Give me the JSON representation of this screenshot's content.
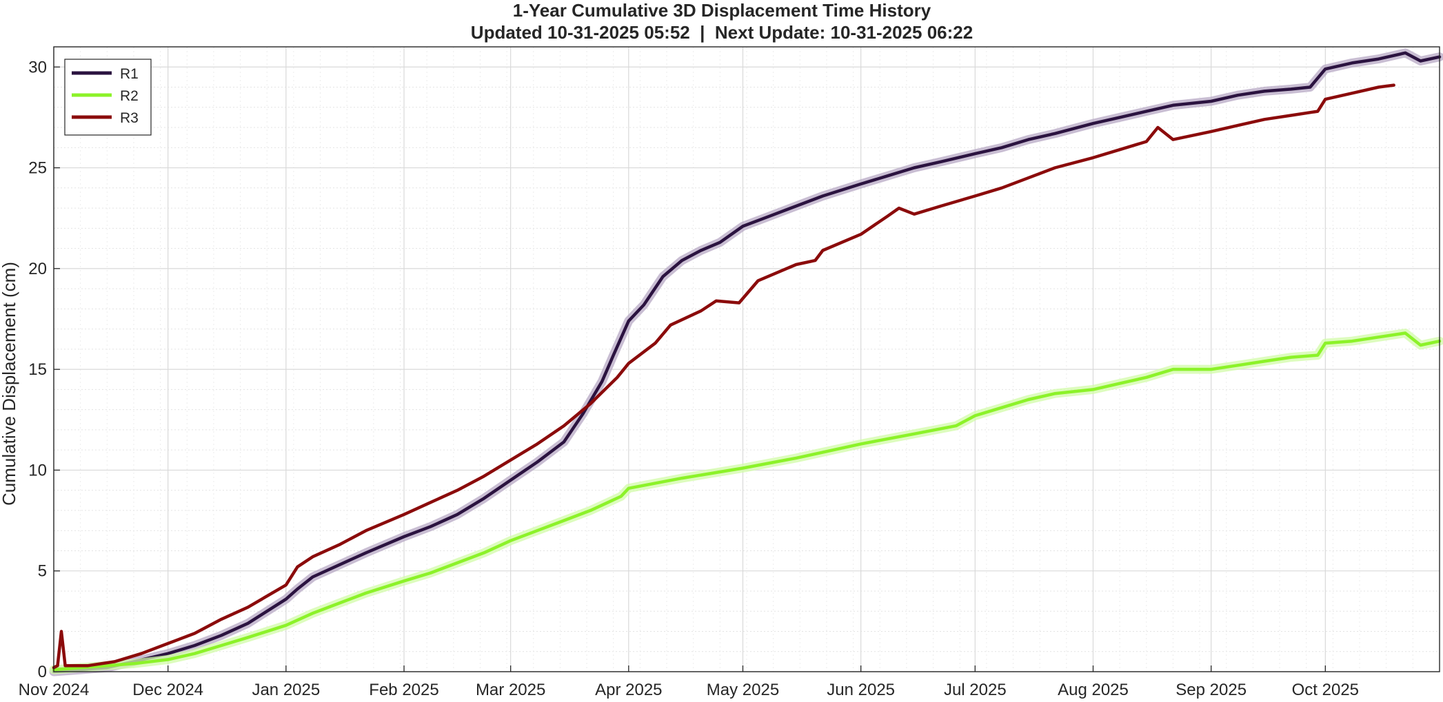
{
  "chart_data": {
    "type": "line",
    "title": "1-Year Cumulative 3D Displacement Time History",
    "subtitle": "Updated 10-31-2025 05:52  |  Next Update: 10-31-2025 06:22",
    "xlabel": "",
    "ylabel": "Cumulative Displacement (cm)",
    "x_axis_type": "date",
    "xlim": [
      "2024-11-01",
      "2025-10-31"
    ],
    "ylim": [
      0,
      31
    ],
    "x_ticks": [
      {
        "date": "2024-11-01",
        "label": "Nov 2024"
      },
      {
        "date": "2024-12-01",
        "label": "Dec 2024"
      },
      {
        "date": "2025-01-01",
        "label": "Jan 2025"
      },
      {
        "date": "2025-02-01",
        "label": "Feb 2025"
      },
      {
        "date": "2025-03-01",
        "label": "Mar 2025"
      },
      {
        "date": "2025-04-01",
        "label": "Apr 2025"
      },
      {
        "date": "2025-05-01",
        "label": "May 2025"
      },
      {
        "date": "2025-06-01",
        "label": "Jun 2025"
      },
      {
        "date": "2025-07-01",
        "label": "Jul 2025"
      },
      {
        "date": "2025-08-01",
        "label": "Aug 2025"
      },
      {
        "date": "2025-09-01",
        "label": "Sep 2025"
      },
      {
        "date": "2025-10-01",
        "label": "Oct 2025"
      }
    ],
    "y_ticks": [
      0,
      5,
      10,
      15,
      20,
      25,
      30
    ],
    "y_minor_step": 1,
    "grid": true,
    "legend_position": "top-left",
    "series": [
      {
        "name": "R1",
        "color": "#2b1340",
        "band_color": "#b7a8c4",
        "points": [
          [
            "2024-11-01",
            0.0
          ],
          [
            "2024-11-08",
            0.1
          ],
          [
            "2024-11-15",
            0.2
          ],
          [
            "2024-11-22",
            0.5
          ],
          [
            "2024-12-01",
            0.9
          ],
          [
            "2024-12-08",
            1.3
          ],
          [
            "2024-12-15",
            1.8
          ],
          [
            "2024-12-22",
            2.4
          ],
          [
            "2025-01-01",
            3.6
          ],
          [
            "2025-01-04",
            4.1
          ],
          [
            "2025-01-08",
            4.7
          ],
          [
            "2025-01-15",
            5.3
          ],
          [
            "2025-01-22",
            5.9
          ],
          [
            "2025-02-01",
            6.7
          ],
          [
            "2025-02-08",
            7.2
          ],
          [
            "2025-02-15",
            7.8
          ],
          [
            "2025-02-22",
            8.6
          ],
          [
            "2025-03-01",
            9.5
          ],
          [
            "2025-03-08",
            10.4
          ],
          [
            "2025-03-15",
            11.4
          ],
          [
            "2025-03-20",
            12.8
          ],
          [
            "2025-03-25",
            14.4
          ],
          [
            "2025-03-28",
            15.7
          ],
          [
            "2025-04-01",
            17.4
          ],
          [
            "2025-04-05",
            18.2
          ],
          [
            "2025-04-10",
            19.6
          ],
          [
            "2025-04-15",
            20.4
          ],
          [
            "2025-04-20",
            20.9
          ],
          [
            "2025-04-25",
            21.3
          ],
          [
            "2025-05-01",
            22.1
          ],
          [
            "2025-05-08",
            22.6
          ],
          [
            "2025-05-15",
            23.1
          ],
          [
            "2025-05-22",
            23.6
          ],
          [
            "2025-06-01",
            24.2
          ],
          [
            "2025-06-08",
            24.6
          ],
          [
            "2025-06-15",
            25.0
          ],
          [
            "2025-06-22",
            25.3
          ],
          [
            "2025-07-01",
            25.7
          ],
          [
            "2025-07-08",
            26.0
          ],
          [
            "2025-07-15",
            26.4
          ],
          [
            "2025-07-22",
            26.7
          ],
          [
            "2025-08-01",
            27.2
          ],
          [
            "2025-08-08",
            27.5
          ],
          [
            "2025-08-15",
            27.8
          ],
          [
            "2025-08-22",
            28.1
          ],
          [
            "2025-09-01",
            28.3
          ],
          [
            "2025-09-08",
            28.6
          ],
          [
            "2025-09-15",
            28.8
          ],
          [
            "2025-09-22",
            28.9
          ],
          [
            "2025-09-27",
            29.0
          ],
          [
            "2025-10-01",
            29.9
          ],
          [
            "2025-10-08",
            30.2
          ],
          [
            "2025-10-15",
            30.4
          ],
          [
            "2025-10-22",
            30.7
          ],
          [
            "2025-10-26",
            30.3
          ],
          [
            "2025-10-31",
            30.5
          ]
        ]
      },
      {
        "name": "R2",
        "color": "#8cf229",
        "band_color": "#d2fba8",
        "points": [
          [
            "2024-11-01",
            0.1
          ],
          [
            "2024-11-08",
            0.2
          ],
          [
            "2024-11-15",
            0.3
          ],
          [
            "2024-11-22",
            0.4
          ],
          [
            "2024-12-01",
            0.6
          ],
          [
            "2024-12-08",
            0.9
          ],
          [
            "2024-12-15",
            1.3
          ],
          [
            "2024-12-22",
            1.7
          ],
          [
            "2025-01-01",
            2.3
          ],
          [
            "2025-01-08",
            2.9
          ],
          [
            "2025-01-15",
            3.4
          ],
          [
            "2025-01-22",
            3.9
          ],
          [
            "2025-02-01",
            4.5
          ],
          [
            "2025-02-08",
            4.9
          ],
          [
            "2025-02-15",
            5.4
          ],
          [
            "2025-02-22",
            5.9
          ],
          [
            "2025-03-01",
            6.5
          ],
          [
            "2025-03-08",
            7.0
          ],
          [
            "2025-03-15",
            7.5
          ],
          [
            "2025-03-22",
            8.0
          ],
          [
            "2025-03-30",
            8.7
          ],
          [
            "2025-04-01",
            9.1
          ],
          [
            "2025-04-15",
            9.6
          ],
          [
            "2025-05-01",
            10.1
          ],
          [
            "2025-05-15",
            10.6
          ],
          [
            "2025-06-01",
            11.3
          ],
          [
            "2025-06-15",
            11.8
          ],
          [
            "2025-06-26",
            12.2
          ],
          [
            "2025-07-01",
            12.7
          ],
          [
            "2025-07-08",
            13.1
          ],
          [
            "2025-07-15",
            13.5
          ],
          [
            "2025-07-22",
            13.8
          ],
          [
            "2025-08-01",
            14.0
          ],
          [
            "2025-08-08",
            14.3
          ],
          [
            "2025-08-15",
            14.6
          ],
          [
            "2025-08-22",
            15.0
          ],
          [
            "2025-09-01",
            15.0
          ],
          [
            "2025-09-08",
            15.2
          ],
          [
            "2025-09-15",
            15.4
          ],
          [
            "2025-09-22",
            15.6
          ],
          [
            "2025-09-29",
            15.7
          ],
          [
            "2025-10-01",
            16.3
          ],
          [
            "2025-10-08",
            16.4
          ],
          [
            "2025-10-15",
            16.6
          ],
          [
            "2025-10-22",
            16.8
          ],
          [
            "2025-10-26",
            16.2
          ],
          [
            "2025-10-31",
            16.4
          ]
        ]
      },
      {
        "name": "R3",
        "color": "#8b0b0b",
        "band_color": "",
        "points": [
          [
            "2024-11-01",
            0.2
          ],
          [
            "2024-11-02",
            0.3
          ],
          [
            "2024-11-03",
            2.0
          ],
          [
            "2024-11-04",
            0.3
          ],
          [
            "2024-11-10",
            0.3
          ],
          [
            "2024-11-17",
            0.5
          ],
          [
            "2024-11-24",
            0.9
          ],
          [
            "2024-12-01",
            1.4
          ],
          [
            "2024-12-08",
            1.9
          ],
          [
            "2024-12-15",
            2.6
          ],
          [
            "2024-12-22",
            3.2
          ],
          [
            "2025-01-01",
            4.3
          ],
          [
            "2025-01-04",
            5.2
          ],
          [
            "2025-01-08",
            5.7
          ],
          [
            "2025-01-15",
            6.3
          ],
          [
            "2025-01-22",
            7.0
          ],
          [
            "2025-02-01",
            7.8
          ],
          [
            "2025-02-08",
            8.4
          ],
          [
            "2025-02-15",
            9.0
          ],
          [
            "2025-02-22",
            9.7
          ],
          [
            "2025-03-01",
            10.5
          ],
          [
            "2025-03-08",
            11.3
          ],
          [
            "2025-03-15",
            12.2
          ],
          [
            "2025-03-22",
            13.3
          ],
          [
            "2025-03-29",
            14.6
          ],
          [
            "2025-04-01",
            15.3
          ],
          [
            "2025-04-08",
            16.3
          ],
          [
            "2025-04-12",
            17.2
          ],
          [
            "2025-04-20",
            17.9
          ],
          [
            "2025-04-24",
            18.4
          ],
          [
            "2025-04-30",
            18.3
          ],
          [
            "2025-05-05",
            19.4
          ],
          [
            "2025-05-15",
            20.2
          ],
          [
            "2025-05-20",
            20.4
          ],
          [
            "2025-05-22",
            20.9
          ],
          [
            "2025-06-01",
            21.7
          ],
          [
            "2025-06-08",
            22.6
          ],
          [
            "2025-06-11",
            23.0
          ],
          [
            "2025-06-15",
            22.7
          ],
          [
            "2025-06-22",
            23.1
          ],
          [
            "2025-07-01",
            23.6
          ],
          [
            "2025-07-08",
            24.0
          ],
          [
            "2025-07-15",
            24.5
          ],
          [
            "2025-07-22",
            25.0
          ],
          [
            "2025-08-01",
            25.5
          ],
          [
            "2025-08-08",
            25.9
          ],
          [
            "2025-08-15",
            26.3
          ],
          [
            "2025-08-18",
            27.0
          ],
          [
            "2025-08-22",
            26.4
          ],
          [
            "2025-09-01",
            26.8
          ],
          [
            "2025-09-08",
            27.1
          ],
          [
            "2025-09-15",
            27.4
          ],
          [
            "2025-09-22",
            27.6
          ],
          [
            "2025-09-29",
            27.8
          ],
          [
            "2025-10-01",
            28.4
          ],
          [
            "2025-10-08",
            28.7
          ],
          [
            "2025-10-15",
            29.0
          ],
          [
            "2025-10-19",
            29.1
          ]
        ]
      }
    ]
  }
}
